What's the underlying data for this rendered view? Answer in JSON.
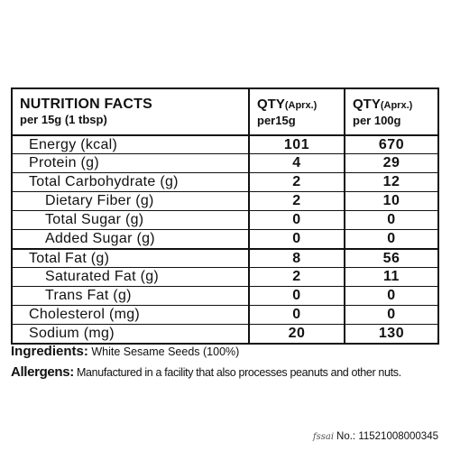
{
  "header": {
    "title": "NUTRITION FACTS",
    "serving": "per 15g (1 tbsp)",
    "col2_qty": "QTY",
    "col2_qty_note": "(Aprx.)",
    "col2_per": "per15g",
    "col3_qty": "QTY",
    "col3_qty_note": "(Aprx.)",
    "col3_per": "per 100g"
  },
  "rows": [
    {
      "name": "Energy (kcal)",
      "per15g": "101",
      "per100g": "670"
    },
    {
      "name": "Protein (g)",
      "per15g": "4",
      "per100g": "29"
    },
    {
      "name": "Total Carbohydrate (g)",
      "per15g": "2",
      "per100g": "12"
    },
    {
      "name": "Dietary Fiber (g)",
      "per15g": "2",
      "per100g": "10"
    },
    {
      "name": "Total Sugar (g)",
      "per15g": "0",
      "per100g": "0"
    },
    {
      "name": "Added Sugar (g)",
      "per15g": "0",
      "per100g": "0"
    },
    {
      "name": "Total Fat (g)",
      "per15g": "8",
      "per100g": "56"
    },
    {
      "name": "Saturated Fat (g)",
      "per15g": "2",
      "per100g": "11"
    },
    {
      "name": "Trans Fat (g)",
      "per15g": "0",
      "per100g": "0"
    },
    {
      "name": "Cholesterol (mg)",
      "per15g": "0",
      "per100g": "0"
    },
    {
      "name": "Sodium (mg)",
      "per15g": "20",
      "per100g": "130"
    }
  ],
  "ingredients": {
    "label": "Ingredients:",
    "text": "White Sesame Seeds (100%)"
  },
  "allergens": {
    "label": "Allergens:",
    "text": "Manufactured in a facility that also processes peanuts and other nuts."
  },
  "fssai": {
    "logo": "fssai",
    "label": "No.:",
    "number": "11521008000345"
  }
}
